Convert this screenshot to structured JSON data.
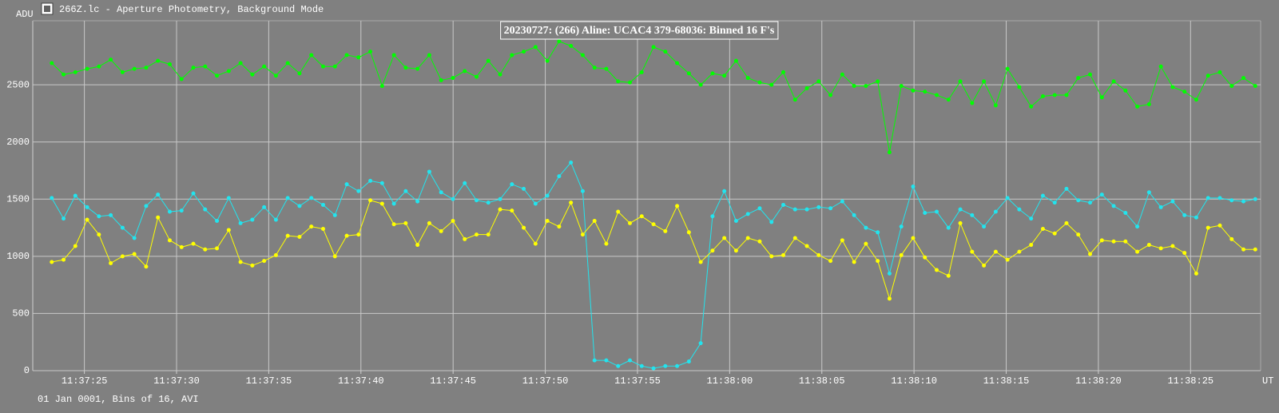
{
  "window_title": "266Z.lc - Aperture Photometry, Background Mode",
  "footer": "01 Jan 0001, Bins of 16, AVI",
  "chart_data": {
    "type": "line",
    "title": "20230727: (266) Aline: UCAC4 379-68036: Binned 16 F's",
    "y_label": "ADU",
    "x_label": "UT",
    "xlim": [
      22.2,
      88.8
    ],
    "ylim": [
      0,
      3060
    ],
    "xticks": [
      {
        "value": 25,
        "label": "11:37:25"
      },
      {
        "value": 30,
        "label": "11:37:30"
      },
      {
        "value": 35,
        "label": "11:37:35"
      },
      {
        "value": 40,
        "label": "11:37:40"
      },
      {
        "value": 45,
        "label": "11:37:45"
      },
      {
        "value": 50,
        "label": "11:37:50"
      },
      {
        "value": 55,
        "label": "11:37:55"
      },
      {
        "value": 60,
        "label": "11:38:00"
      },
      {
        "value": 65,
        "label": "11:38:05"
      },
      {
        "value": 70,
        "label": "11:38:10"
      },
      {
        "value": 75,
        "label": "11:38:15"
      },
      {
        "value": 80,
        "label": "11:38:20"
      },
      {
        "value": 85,
        "label": "11:38:25"
      }
    ],
    "yticks": [
      0,
      500,
      1000,
      1500,
      2000,
      2500
    ],
    "grid": true,
    "x": [
      23.23,
      23.87,
      24.51,
      25.15,
      25.79,
      26.43,
      27.07,
      27.71,
      28.35,
      28.99,
      29.63,
      30.27,
      30.91,
      31.55,
      32.19,
      32.83,
      33.47,
      34.11,
      34.75,
      35.39,
      36.03,
      36.67,
      37.31,
      37.95,
      38.59,
      39.23,
      39.87,
      40.51,
      41.15,
      41.79,
      42.43,
      43.07,
      43.71,
      44.35,
      44.99,
      45.63,
      46.27,
      46.91,
      47.55,
      48.19,
      48.83,
      49.47,
      50.11,
      50.75,
      51.39,
      52.03,
      52.67,
      53.31,
      53.95,
      54.59,
      55.23,
      55.87,
      56.51,
      57.15,
      57.79,
      58.43,
      59.07,
      59.71,
      60.35,
      60.99,
      61.63,
      62.27,
      62.91,
      63.55,
      64.19,
      64.83,
      65.47,
      66.11,
      66.75,
      67.39,
      68.03,
      68.67,
      69.31,
      69.95,
      70.59,
      71.23,
      71.87,
      72.51,
      73.15,
      73.79,
      74.43,
      75.07,
      75.71,
      76.35,
      76.99,
      77.63,
      78.27,
      78.91,
      79.55,
      80.19,
      80.83,
      81.47,
      82.11,
      82.75,
      83.39,
      84.03,
      84.67,
      85.31,
      85.95,
      86.59,
      87.23,
      87.87,
      88.51
    ],
    "series": [
      {
        "color": "#00ff00",
        "values": [
          2690,
          2590,
          2610,
          2640,
          2660,
          2720,
          2610,
          2640,
          2650,
          2710,
          2680,
          2550,
          2650,
          2660,
          2580,
          2620,
          2690,
          2590,
          2660,
          2580,
          2690,
          2600,
          2760,
          2660,
          2660,
          2760,
          2740,
          2790,
          2490,
          2760,
          2650,
          2640,
          2760,
          2540,
          2560,
          2620,
          2570,
          2710,
          2590,
          2760,
          2790,
          2830,
          2710,
          2880,
          2840,
          2760,
          2650,
          2640,
          2530,
          2520,
          2610,
          2830,
          2790,
          2690,
          2600,
          2500,
          2600,
          2580,
          2710,
          2560,
          2520,
          2500,
          2610,
          2370,
          2470,
          2530,
          2410,
          2590,
          2490,
          2490,
          2530,
          1910,
          2490,
          2450,
          2440,
          2410,
          2370,
          2530,
          2340,
          2530,
          2320,
          2640,
          2480,
          2310,
          2400,
          2410,
          2410,
          2560,
          2590,
          2390,
          2530,
          2450,
          2310,
          2330,
          2660,
          2480,
          2440,
          2370,
          2580,
          2610,
          2490,
          2560,
          2490
        ]
      },
      {
        "color": "#22e4ee",
        "values": [
          1510,
          1330,
          1530,
          1430,
          1350,
          1360,
          1250,
          1160,
          1440,
          1540,
          1390,
          1400,
          1550,
          1410,
          1310,
          1510,
          1290,
          1320,
          1430,
          1320,
          1510,
          1440,
          1510,
          1450,
          1360,
          1630,
          1570,
          1660,
          1640,
          1460,
          1570,
          1480,
          1740,
          1560,
          1500,
          1640,
          1490,
          1470,
          1500,
          1630,
          1590,
          1460,
          1530,
          1700,
          1820,
          1570,
          90,
          90,
          40,
          90,
          40,
          20,
          40,
          40,
          80,
          240,
          1350,
          1570,
          1310,
          1370,
          1420,
          1300,
          1450,
          1410,
          1410,
          1430,
          1420,
          1480,
          1360,
          1250,
          1210,
          850,
          1260,
          1610,
          1380,
          1390,
          1250,
          1410,
          1360,
          1260,
          1390,
          1510,
          1410,
          1330,
          1530,
          1470,
          1590,
          1490,
          1470,
          1540,
          1440,
          1380,
          1260,
          1560,
          1430,
          1480,
          1360,
          1340,
          1510,
          1510,
          1490,
          1480,
          1500
        ]
      },
      {
        "color": "#ffff00",
        "values": [
          950,
          970,
          1090,
          1320,
          1190,
          940,
          1000,
          1020,
          910,
          1340,
          1140,
          1080,
          1110,
          1060,
          1070,
          1230,
          950,
          920,
          960,
          1010,
          1180,
          1170,
          1260,
          1240,
          1000,
          1180,
          1190,
          1490,
          1460,
          1280,
          1290,
          1100,
          1290,
          1220,
          1310,
          1150,
          1190,
          1190,
          1410,
          1400,
          1250,
          1110,
          1310,
          1260,
          1470,
          1190,
          1310,
          1110,
          1390,
          1290,
          1350,
          1280,
          1220,
          1440,
          1210,
          950,
          1050,
          1160,
          1050,
          1160,
          1130,
          1000,
          1010,
          1160,
          1090,
          1010,
          960,
          1140,
          950,
          1110,
          960,
          630,
          1010,
          1160,
          990,
          880,
          830,
          1290,
          1040,
          920,
          1040,
          970,
          1040,
          1100,
          1240,
          1200,
          1290,
          1190,
          1020,
          1140,
          1130,
          1130,
          1040,
          1100,
          1070,
          1090,
          1030,
          850,
          1250,
          1270,
          1150,
          1060,
          1060
        ]
      }
    ]
  }
}
